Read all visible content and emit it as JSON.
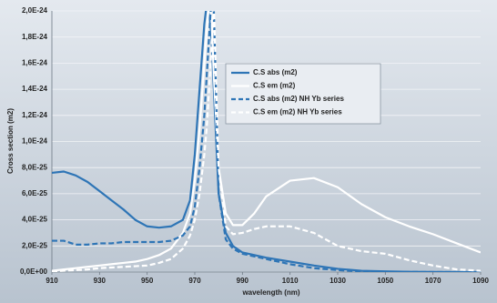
{
  "chart_data": {
    "type": "line",
    "xlabel": "wavelength (nm)",
    "ylabel": "Cross section (m2)",
    "x": [
      910,
      915,
      920,
      925,
      930,
      935,
      940,
      945,
      950,
      955,
      960,
      965,
      968,
      970,
      972,
      974,
      975,
      976,
      977,
      978,
      980,
      983,
      986,
      990,
      995,
      1000,
      1010,
      1020,
      1030,
      1040,
      1050,
      1060,
      1070,
      1080,
      1090
    ],
    "series": [
      {
        "name": "C.S abs (m2)",
        "color": "#2e75b6",
        "dash": false,
        "values": [
          7.6e-25,
          7.7e-25,
          7.4e-25,
          6.9e-25,
          6.2e-25,
          5.5e-25,
          4.8e-25,
          4e-25,
          3.5e-25,
          3.4e-25,
          3.5e-25,
          4e-25,
          5.5e-25,
          9e-25,
          1.4e-24,
          1.9e-24,
          2.05e-24,
          2e-24,
          1.8e-24,
          1.4e-24,
          6e-25,
          3e-25,
          2e-25,
          1.5e-25,
          1.3e-25,
          1.1e-25,
          8e-26,
          5e-26,
          2.5e-26,
          1e-26,
          5e-27,
          2e-27,
          1e-27,
          0,
          0
        ]
      },
      {
        "name": "C.S em (m2)",
        "color": "#ffffff",
        "dash": false,
        "values": [
          1e-26,
          2e-26,
          3e-26,
          4e-26,
          5e-26,
          6e-26,
          7e-26,
          8e-26,
          1e-25,
          1.3e-25,
          1.8e-25,
          3e-25,
          4.5e-25,
          7e-25,
          1.1e-24,
          1.6e-24,
          1.85e-24,
          2.05e-24,
          1.95e-24,
          1.5e-24,
          8e-25,
          4.5e-25,
          3.6e-25,
          3.6e-25,
          4.5e-25,
          5.8e-25,
          7e-25,
          7.2e-25,
          6.5e-25,
          5.2e-25,
          4.2e-25,
          3.5e-25,
          2.9e-25,
          2.2e-25,
          1.5e-25
        ]
      },
      {
        "name": "C.S abs (m2) NH Yb series",
        "color": "#2e75b6",
        "dash": true,
        "values": [
          2.4e-25,
          2.4e-25,
          2.1e-25,
          2.1e-25,
          2.2e-25,
          2.2e-25,
          2.3e-25,
          2.3e-25,
          2.3e-25,
          2.3e-25,
          2.4e-25,
          2.8e-25,
          3.5e-25,
          5e-25,
          8e-25,
          1.2e-24,
          1.5e-24,
          1.8e-24,
          2.1e-24,
          2e-24,
          6e-25,
          2.5e-25,
          1.8e-25,
          1.4e-25,
          1.2e-25,
          1e-25,
          6e-26,
          3e-26,
          1.5e-26,
          5e-27,
          2e-27,
          1e-27,
          0,
          0,
          0
        ]
      },
      {
        "name": "C.S em (m2) NH Yb series",
        "color": "#ffffff",
        "dash": true,
        "values": [
          5e-27,
          1e-26,
          1.5e-26,
          2e-26,
          3e-26,
          3.5e-26,
          4e-26,
          4.5e-26,
          5e-26,
          7e-26,
          1e-25,
          1.8e-25,
          2.8e-25,
          4e-25,
          6e-25,
          9e-25,
          1.1e-24,
          1.4e-24,
          1.7e-24,
          2.05e-24,
          8e-25,
          3.5e-25,
          2.9e-25,
          3e-25,
          3.3e-25,
          3.5e-25,
          3.5e-25,
          3e-25,
          2e-25,
          1.6e-25,
          1.4e-25,
          9e-26,
          5e-26,
          2e-26,
          1e-26
        ]
      }
    ],
    "xlim": [
      910,
      1090
    ],
    "xticks": [
      910,
      930,
      950,
      970,
      990,
      1010,
      1030,
      1050,
      1070,
      1090
    ],
    "ylim": [
      0,
      2e-24
    ],
    "yticks": [
      {
        "value": 0,
        "label": "0,0E+00"
      },
      {
        "value": 2e-25,
        "label": "2,0E-25"
      },
      {
        "value": 4e-25,
        "label": "4,0E-25"
      },
      {
        "value": 6e-25,
        "label": "6,0E-25"
      },
      {
        "value": 8e-25,
        "label": "8,0E-25"
      },
      {
        "value": 1e-24,
        "label": "1,0E-24"
      },
      {
        "value": 1.2e-24,
        "label": "1,2E-24"
      },
      {
        "value": 1.4e-24,
        "label": "1,4E-24"
      },
      {
        "value": 1.6e-24,
        "label": "1,6E-24"
      },
      {
        "value": 1.8e-24,
        "label": "1,8E-24"
      },
      {
        "value": 2e-24,
        "label": "2,0E-24"
      }
    ],
    "grid": true,
    "legend": "top"
  }
}
